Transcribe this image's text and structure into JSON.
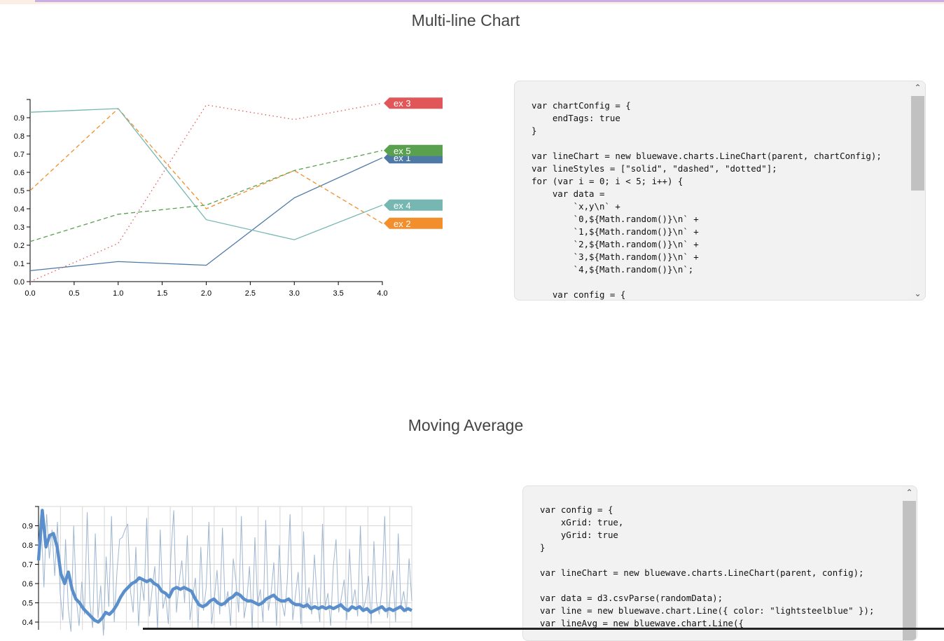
{
  "sections": [
    {
      "title": "Multi-line Chart",
      "code": "var chartConfig = {\n    endTags: true\n}\n\nvar lineChart = new bluewave.charts.LineChart(parent, chartConfig);\nvar lineStyles = [\"solid\", \"dashed\", \"dotted\"];\nfor (var i = 0; i < 5; i++) {\n    var data =\n        `x,y\\n` +\n        `0,${Math.random()}\\n` +\n        `1,${Math.random()}\\n` +\n        `2,${Math.random()}\\n` +\n        `3,${Math.random()}\\n` +\n        `4,${Math.random()}\\n`;\n\n    var config = {"
    },
    {
      "title": "Moving Average",
      "code": "var config = {\n    xGrid: true,\n    yGrid: true\n}\n\nvar lineChart = new bluewave.charts.LineChart(parent, config);\n\nvar data = d3.csvParse(randomData);\nvar line = new bluewave.chart.Line({ color: \"lightsteelblue\" });\nvar lineAvg = new bluewave.chart.Line({"
    }
  ],
  "scroll": {
    "up": "⌃",
    "down": "⌄"
  },
  "chart_data": [
    {
      "type": "line",
      "x": [
        0,
        1,
        2,
        3,
        4
      ],
      "xlim": [
        0,
        4
      ],
      "ylim": [
        0,
        1
      ],
      "xticks": [
        "0.0",
        "0.5",
        "1.0",
        "1.5",
        "2.0",
        "2.5",
        "3.0",
        "3.5",
        "4.0"
      ],
      "yticks": [
        "0.0",
        "0.1",
        "0.2",
        "0.3",
        "0.4",
        "0.5",
        "0.6",
        "0.7",
        "0.8",
        "0.9"
      ],
      "end_tags": true,
      "series": [
        {
          "name": "ex 1",
          "color": "#4e79a7",
          "style": "solid",
          "values": [
            0.06,
            0.11,
            0.09,
            0.46,
            0.68
          ]
        },
        {
          "name": "ex 2",
          "color": "#f28e2b",
          "style": "dashed",
          "values": [
            0.5,
            0.95,
            0.4,
            0.61,
            0.32
          ]
        },
        {
          "name": "ex 3",
          "color": "#e15759",
          "style": "dotted",
          "values": [
            0.0,
            0.21,
            0.97,
            0.89,
            0.98
          ]
        },
        {
          "name": "ex 4",
          "color": "#76b7b2",
          "style": "solid",
          "values": [
            0.93,
            0.95,
            0.34,
            0.23,
            0.42
          ]
        },
        {
          "name": "ex 5",
          "color": "#59a14f",
          "style": "dashed",
          "values": [
            0.22,
            0.37,
            0.42,
            0.61,
            0.72
          ]
        }
      ]
    },
    {
      "type": "line",
      "ylim": [
        0.36,
        1
      ],
      "yticks": [
        "0.4",
        "0.5",
        "0.6",
        "0.7",
        "0.8",
        "0.9"
      ],
      "grid": true,
      "series": [
        {
          "color": "lightsteelblue",
          "values": [
            0.72,
            0.91,
            0.58,
            0.96,
            0.73,
            0.88,
            0.64,
            0.92,
            0.55,
            0.41,
            0.83,
            0.47,
            0.35,
            0.9,
            0.52,
            0.38,
            0.61,
            0.44,
            0.97,
            0.5,
            0.37,
            0.86,
            0.42,
            0.59,
            0.33,
            0.74,
            0.48,
            0.95,
            0.4,
            0.66,
            0.83,
            0.84,
            0.88,
            0.91,
            0.56,
            0.45,
            0.79,
            0.38,
            0.62,
            0.51,
            0.94,
            0.43,
            0.57,
            0.69,
            0.36,
            0.88,
            0.47,
            0.54,
            0.39,
            0.76,
            0.98,
            0.45,
            0.61,
            0.72,
            0.5,
            0.85,
            0.41,
            0.53,
            0.63,
            0.37,
            0.79,
            0.46,
            0.58,
            0.92,
            0.39,
            0.52,
            0.67,
            0.44,
            0.89,
            0.48,
            0.56,
            0.38,
            0.73,
            0.61,
            0.45,
            0.95,
            0.42,
            0.51,
            0.69,
            0.37,
            0.84,
            0.49,
            0.57,
            0.4,
            0.93,
            0.46,
            0.55,
            0.71,
            0.38,
            0.8,
            0.5,
            0.43,
            0.62,
            0.96,
            0.41,
            0.54,
            0.66,
            0.39,
            0.87,
            0.47,
            0.58,
            0.44,
            0.75,
            0.52,
            0.4,
            0.91,
            0.48,
            0.55,
            0.38,
            0.69,
            0.83,
            0.45,
            0.53,
            0.62,
            0.41,
            0.78,
            0.49,
            0.57,
            0.43,
            0.9,
            0.46,
            0.52,
            0.64,
            0.39,
            0.82,
            0.5,
            0.44,
            0.58,
            0.95,
            0.42,
            0.54,
            0.67,
            0.4,
            0.86,
            0.48,
            0.56,
            0.45,
            0.73,
            0.51
          ]
        },
        {
          "color": "#4e79a7",
          "values": [
            0.72,
            0.98,
            0.79,
            0.85,
            0.86,
            0.79,
            0.65,
            0.6,
            0.66,
            0.57,
            0.52,
            0.5,
            0.47,
            0.45,
            0.43,
            0.41,
            0.4,
            0.42,
            0.45,
            0.44,
            0.46,
            0.49,
            0.53,
            0.56,
            0.58,
            0.6,
            0.61,
            0.63,
            0.62,
            0.61,
            0.62,
            0.6,
            0.59,
            0.56,
            0.55,
            0.53,
            0.57,
            0.58,
            0.57,
            0.58,
            0.57,
            0.56,
            0.52,
            0.49,
            0.48,
            0.49,
            0.51,
            0.52,
            0.5,
            0.49,
            0.5,
            0.52,
            0.53,
            0.55,
            0.54,
            0.52,
            0.51,
            0.51,
            0.5,
            0.49,
            0.5,
            0.52,
            0.53,
            0.54,
            0.52,
            0.51,
            0.51,
            0.52,
            0.5,
            0.49,
            0.49,
            0.48,
            0.49,
            0.47,
            0.48,
            0.47,
            0.48,
            0.47,
            0.48,
            0.47,
            0.48,
            0.49,
            0.47,
            0.46,
            0.48,
            0.47,
            0.48,
            0.46,
            0.47,
            0.45,
            0.46,
            0.47,
            0.48,
            0.46,
            0.47,
            0.46,
            0.47,
            0.48,
            0.46,
            0.47,
            0.46
          ]
        }
      ]
    }
  ]
}
